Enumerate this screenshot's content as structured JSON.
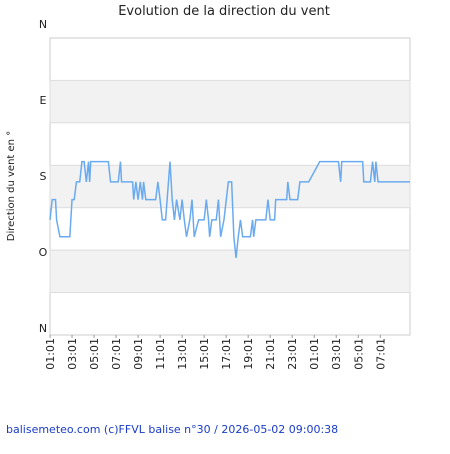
{
  "chart_data": {
    "type": "line",
    "title": "Evolution de la direction du vent",
    "y_label": "Direction du vent en °",
    "footer": "balisemeteo.com (c)FFVL balise n°30 / 2026-05-02 09:00:38",
    "xlim": [
      0,
      32.7
    ],
    "xticks": [
      {
        "value": 0,
        "label": "01:01"
      },
      {
        "value": 2,
        "label": "03:01"
      },
      {
        "value": 4,
        "label": "05:01"
      },
      {
        "value": 6,
        "label": "07:01"
      },
      {
        "value": 8,
        "label": "09:01"
      },
      {
        "value": 10,
        "label": "11:01"
      },
      {
        "value": 12,
        "label": "13:01"
      },
      {
        "value": 14,
        "label": "15:01"
      },
      {
        "value": 16,
        "label": "17:01"
      },
      {
        "value": 18,
        "label": "19:01"
      },
      {
        "value": 20,
        "label": "21:01"
      },
      {
        "value": 22,
        "label": "23:01"
      },
      {
        "value": 24,
        "label": "01:01"
      },
      {
        "value": 26,
        "label": "03:01"
      },
      {
        "value": 28,
        "label": "05:01"
      },
      {
        "value": 30,
        "label": "07:01"
      }
    ],
    "ylim": [
      -8.3,
      343.4
    ],
    "yticks": [
      {
        "value": 0,
        "label": "N"
      },
      {
        "value": 90,
        "label": "O"
      },
      {
        "value": 180,
        "label": "S"
      },
      {
        "value": 270,
        "label": "E"
      },
      {
        "value": 360,
        "label": "N"
      }
    ],
    "series": [
      {
        "color": "#6aaaf0",
        "x": [
          0,
          0.2,
          0.5,
          0.6,
          0.9,
          1.8,
          2,
          2.2,
          2.4,
          2.7,
          2.9,
          3.1,
          3.3,
          3.5,
          3.6,
          3.7,
          5.3,
          5.5,
          6.2,
          6.4,
          6.5,
          7.5,
          7.6,
          7.8,
          8,
          8.2,
          8.4,
          8.5,
          8.7,
          9.6,
          9.8,
          10,
          10.2,
          10.5,
          10.9,
          11.1,
          11.3,
          11.5,
          11.8,
          12,
          12.2,
          12.4,
          12.7,
          12.9,
          13.1,
          13.5,
          14,
          14.2,
          14.4,
          14.5,
          14.7,
          15.1,
          15.3,
          15.5,
          15.8,
          16.2,
          16.5,
          16.7,
          16.9,
          17.1,
          17.3,
          17.5,
          18.2,
          18.4,
          18.5,
          18.7,
          19.6,
          19.8,
          20,
          20.4,
          20.5,
          21.5,
          21.6,
          21.8,
          22.5,
          22.7,
          23.5,
          24.5,
          26.2,
          26.4,
          26.5,
          28.4,
          28.5,
          29.1,
          29.3,
          29.5,
          29.6,
          29.8,
          32.7
        ],
        "values": [
          128,
          152,
          152,
          128,
          108,
          108,
          152,
          152,
          173,
          173,
          197,
          197,
          173,
          197,
          173,
          197,
          197,
          173,
          173,
          197,
          173,
          173,
          152,
          173,
          152,
          173,
          152,
          173,
          152,
          152,
          173,
          152,
          128,
          128,
          197,
          152,
          128,
          152,
          128,
          152,
          128,
          108,
          128,
          152,
          108,
          128,
          128,
          152,
          128,
          108,
          128,
          128,
          152,
          108,
          128,
          173,
          173,
          108,
          83,
          108,
          128,
          108,
          108,
          128,
          108,
          128,
          128,
          152,
          128,
          128,
          152,
          152,
          173,
          152,
          152,
          173,
          173,
          197,
          197,
          173,
          197,
          197,
          173,
          173,
          197,
          173,
          197,
          173,
          173
        ]
      }
    ]
  }
}
